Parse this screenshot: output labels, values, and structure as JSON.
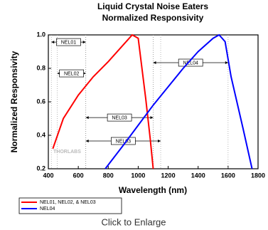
{
  "chart_data": {
    "type": "line",
    "title": [
      "Liquid Crystal Noise Eaters",
      "Normalized Responsivity"
    ],
    "xlabel": "Wavelength (nm)",
    "ylabel": "Normalized Responsivity",
    "xlim": [
      400,
      1800
    ],
    "xticks": [
      400,
      600,
      800,
      1000,
      1200,
      1400,
      1600,
      1800
    ],
    "ylim": [
      0.2,
      1.0
    ],
    "yticks": [
      0.2,
      0.4,
      0.6,
      0.8,
      {
        "value": 1.0,
        "label": "1.0"
      }
    ],
    "series": [
      {
        "name": "NEL01, NEL02, & NEL03",
        "color": "#ff0000",
        "x": [
          430,
          500,
          600,
          700,
          800,
          900,
          960,
          1000,
          1050,
          1080,
          1100
        ],
        "values": [
          0.32,
          0.5,
          0.64,
          0.75,
          0.84,
          0.94,
          1.0,
          0.98,
          0.62,
          0.38,
          0.2
        ]
      },
      {
        "name": "NEL04",
        "color": "#0000ff",
        "x": [
          780,
          900,
          1000,
          1100,
          1200,
          1300,
          1400,
          1500,
          1540,
          1580,
          1620,
          1700,
          1760
        ],
        "values": [
          0.2,
          0.34,
          0.46,
          0.58,
          0.69,
          0.8,
          0.9,
          0.98,
          1.0,
          0.96,
          0.75,
          0.44,
          0.2
        ]
      }
    ],
    "annotations": [
      {
        "text": "NEL01",
        "x": [
          420,
          650
        ],
        "y": 0.957
      },
      {
        "text": "NEL02",
        "x": [
          460,
          650
        ],
        "y": 0.77
      },
      {
        "text": "NEL03",
        "x": [
          650,
          1100
        ],
        "y": 0.506
      },
      {
        "text": "NEL03",
        "x": [
          650,
          1150
        ],
        "y": 0.366
      },
      {
        "text": "NEL04",
        "x": [
          1100,
          1600
        ],
        "y": 0.834
      }
    ],
    "watermark": "THORLABS"
  },
  "footer": "Click to Enlarge"
}
